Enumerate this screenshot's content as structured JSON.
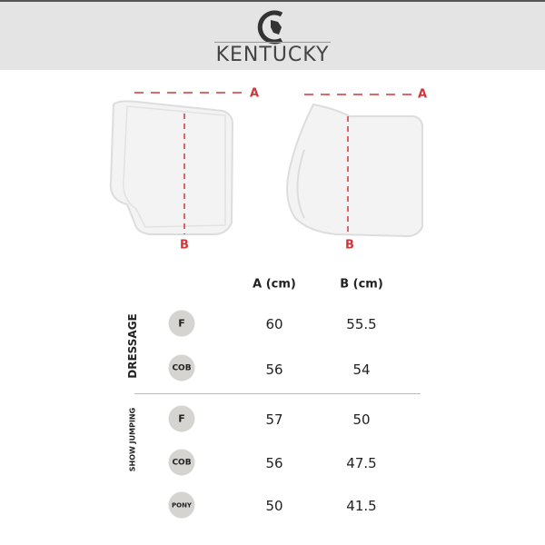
{
  "brand": "KENTUCKY",
  "diagram": {
    "dimension_a": "A",
    "dimension_b": "B",
    "accent_color": "#d0363a"
  },
  "table": {
    "columns": [
      "A (cm)",
      "B (cm)"
    ],
    "groups": [
      {
        "label": "DRESSAGE",
        "rows": [
          {
            "size": "F",
            "a": "60",
            "b": "55.5"
          },
          {
            "size": "COB",
            "a": "56",
            "b": "54"
          }
        ]
      },
      {
        "label": "SHOW JUMPING",
        "rows": [
          {
            "size": "F",
            "a": "57",
            "b": "50"
          },
          {
            "size": "COB",
            "a": "56",
            "b": "47.5"
          },
          {
            "size": "PONY",
            "a": "50",
            "b": "41.5"
          }
        ]
      }
    ]
  }
}
